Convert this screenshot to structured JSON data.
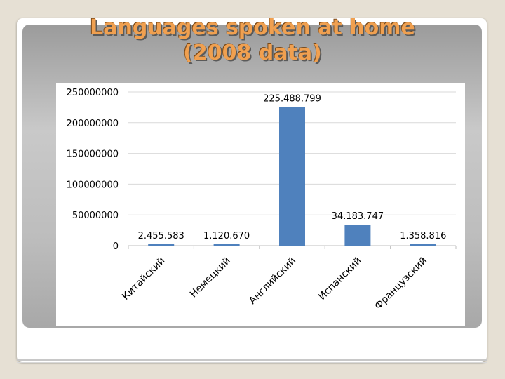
{
  "slide": {
    "title_line1": "Languages spoken at home",
    "title_line2": "(2008 data)"
  },
  "colors": {
    "bar": "#4f81bd",
    "title": "#f0a050"
  },
  "chart_data": {
    "type": "bar",
    "title": "",
    "xlabel": "",
    "ylabel": "",
    "ylim": [
      0,
      250000000
    ],
    "yticks": [
      0,
      50000000,
      100000000,
      150000000,
      200000000,
      250000000
    ],
    "ytick_labels": [
      "0",
      "50000000",
      "100000000",
      "150000000",
      "200000000",
      "250000000"
    ],
    "grid": true,
    "categories": [
      "Китайский",
      "Немецкий",
      "Английский",
      "Испанский",
      "Французский"
    ],
    "values": [
      2455583,
      1120670,
      225488799,
      34183747,
      1358816
    ],
    "data_labels": [
      "2.455.583",
      "1.120.670",
      "225.488.799",
      "34.183.747",
      "1.358.816"
    ]
  }
}
